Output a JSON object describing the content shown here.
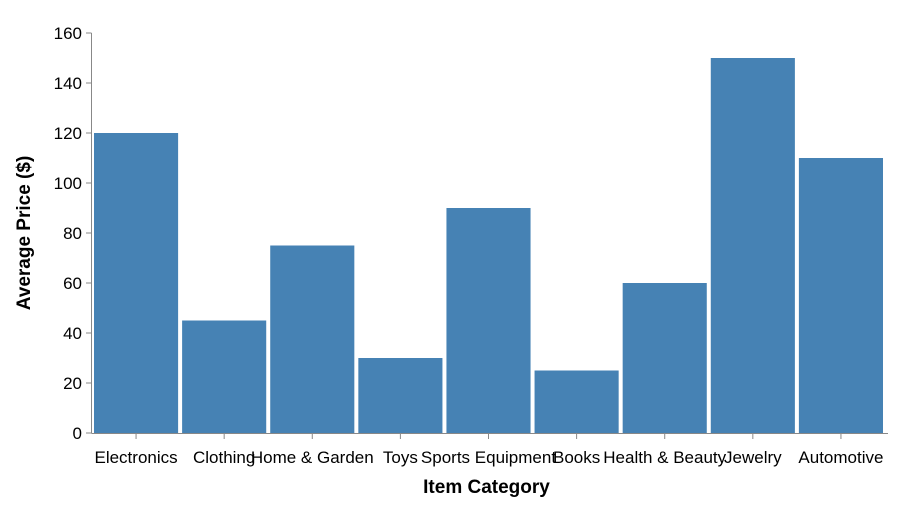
{
  "chart_data": {
    "type": "bar",
    "categories": [
      "Electronics",
      "Clothing",
      "Home & Garden",
      "Toys",
      "Sports Equipment",
      "Books",
      "Health & Beauty",
      "Jewelry",
      "Automotive"
    ],
    "values": [
      120,
      45,
      75,
      30,
      90,
      25,
      60,
      150,
      110
    ],
    "xlabel": "Item Category",
    "ylabel": "Average Price ($)",
    "ylim": [
      0,
      160
    ],
    "yticks": [
      0,
      20,
      40,
      60,
      80,
      100,
      120,
      140,
      160
    ],
    "grid": false,
    "bar_color": "#4682b4"
  }
}
